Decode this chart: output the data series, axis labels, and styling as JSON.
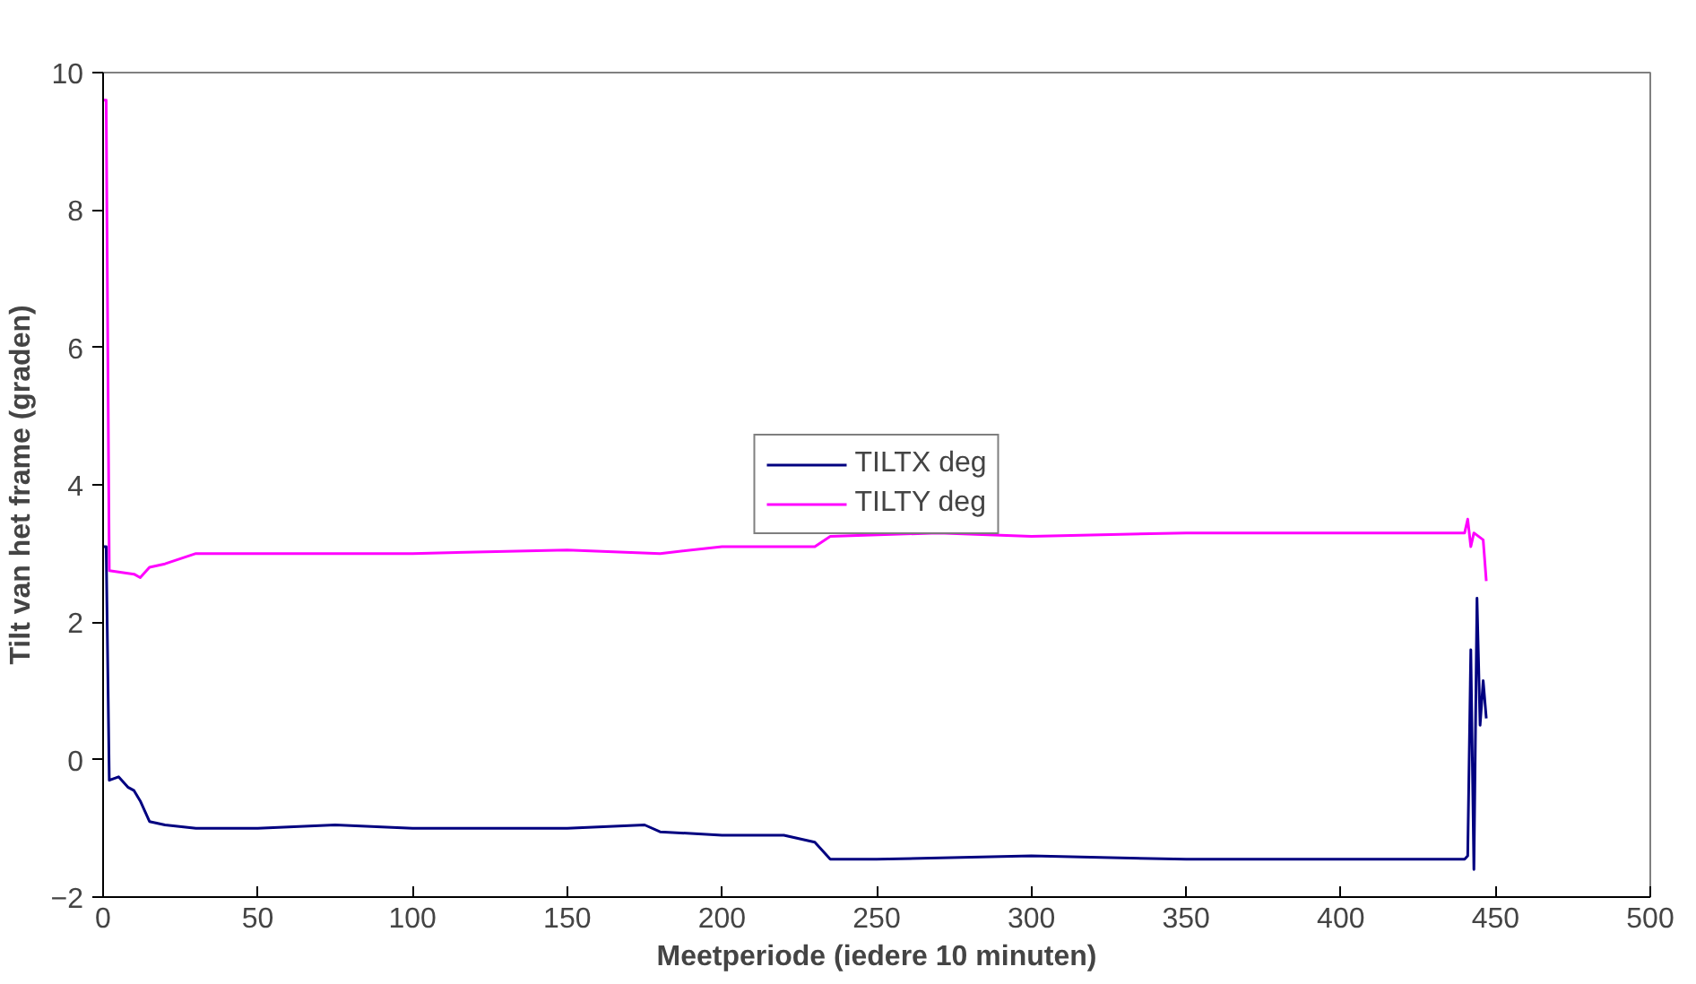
{
  "chart_data": {
    "type": "line",
    "xlabel": "Meetperiode (iedere 10 minuten)",
    "ylabel": "Tilt van het frame (graden)",
    "xlim": [
      0,
      500
    ],
    "ylim": [
      -2,
      10
    ],
    "xticks": [
      0,
      50,
      100,
      150,
      200,
      250,
      300,
      350,
      400,
      450,
      500
    ],
    "yticks": [
      -2,
      0,
      2,
      4,
      6,
      8,
      10
    ],
    "grid": false,
    "legend": "center",
    "marker": "none",
    "line_style": "solid",
    "series": [
      {
        "name": "TILTX deg",
        "color": "#000080",
        "x": [
          0,
          1,
          2,
          5,
          8,
          10,
          12,
          15,
          20,
          30,
          50,
          75,
          100,
          125,
          150,
          175,
          180,
          200,
          220,
          230,
          235,
          250,
          300,
          350,
          400,
          440,
          441,
          442,
          443,
          444,
          445,
          446,
          447
        ],
        "values": [
          3.1,
          3.1,
          -0.3,
          -0.25,
          -0.4,
          -0.45,
          -0.6,
          -0.9,
          -0.95,
          -1.0,
          -1.0,
          -0.95,
          -1.0,
          -1.0,
          -1.0,
          -0.95,
          -1.05,
          -1.1,
          -1.1,
          -1.2,
          -1.45,
          -1.45,
          -1.4,
          -1.45,
          -1.45,
          -1.45,
          -1.4,
          1.6,
          -1.6,
          2.35,
          0.5,
          1.15,
          0.6
        ]
      },
      {
        "name": "TILTY deg",
        "color": "#ff00ff",
        "x": [
          0,
          1,
          2,
          10,
          12,
          15,
          20,
          30,
          50,
          100,
          150,
          180,
          200,
          230,
          235,
          270,
          300,
          350,
          400,
          440,
          441,
          442,
          443,
          446,
          447
        ],
        "values": [
          9.6,
          9.6,
          2.75,
          2.7,
          2.65,
          2.8,
          2.85,
          3.0,
          3.0,
          3.0,
          3.05,
          3.0,
          3.1,
          3.1,
          3.25,
          3.3,
          3.25,
          3.3,
          3.3,
          3.3,
          3.5,
          3.1,
          3.3,
          3.2,
          2.6
        ]
      }
    ]
  }
}
